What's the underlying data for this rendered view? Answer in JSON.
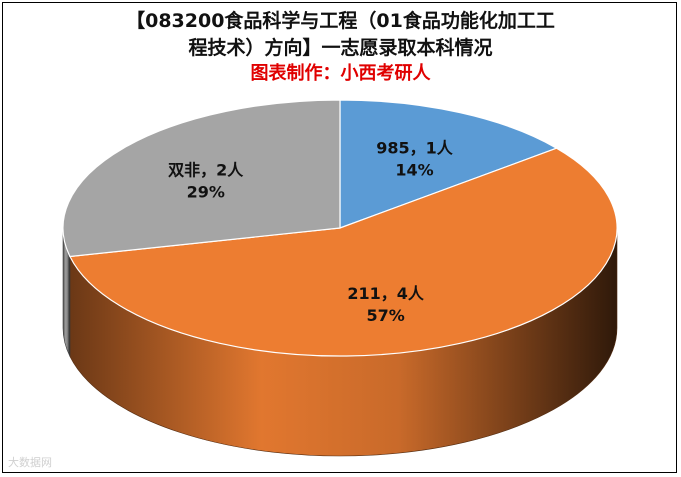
{
  "header": {
    "title_line1": "【083200食品科学与工程（01食品功能化加工工",
    "title_line2": "程技术）方向】一志愿录取本科情况",
    "subtitle": "图表制作：小西考研人"
  },
  "watermark": {
    "text": "大数据网"
  },
  "chart_data": {
    "type": "pie",
    "style": "3d",
    "title": "【083200食品科学与工程（01食品功能化加工工程技术）方向】一志愿录取本科情况",
    "subtitle": "图表制作：小西考研人",
    "legend": "none",
    "slices": [
      {
        "category": "985",
        "value": 1,
        "percent": 14,
        "label_line1": "985，1人",
        "label_line2": "14%",
        "color": "#5b9bd5"
      },
      {
        "category": "211",
        "value": 4,
        "percent": 57,
        "label_line1": "211，4人",
        "label_line2": "57%",
        "color": "#ed7d31"
      },
      {
        "category": "双非",
        "value": 2,
        "percent": 29,
        "label_line1": "双非，2人",
        "label_line2": "29%",
        "color": "#a5a5a5"
      }
    ]
  }
}
